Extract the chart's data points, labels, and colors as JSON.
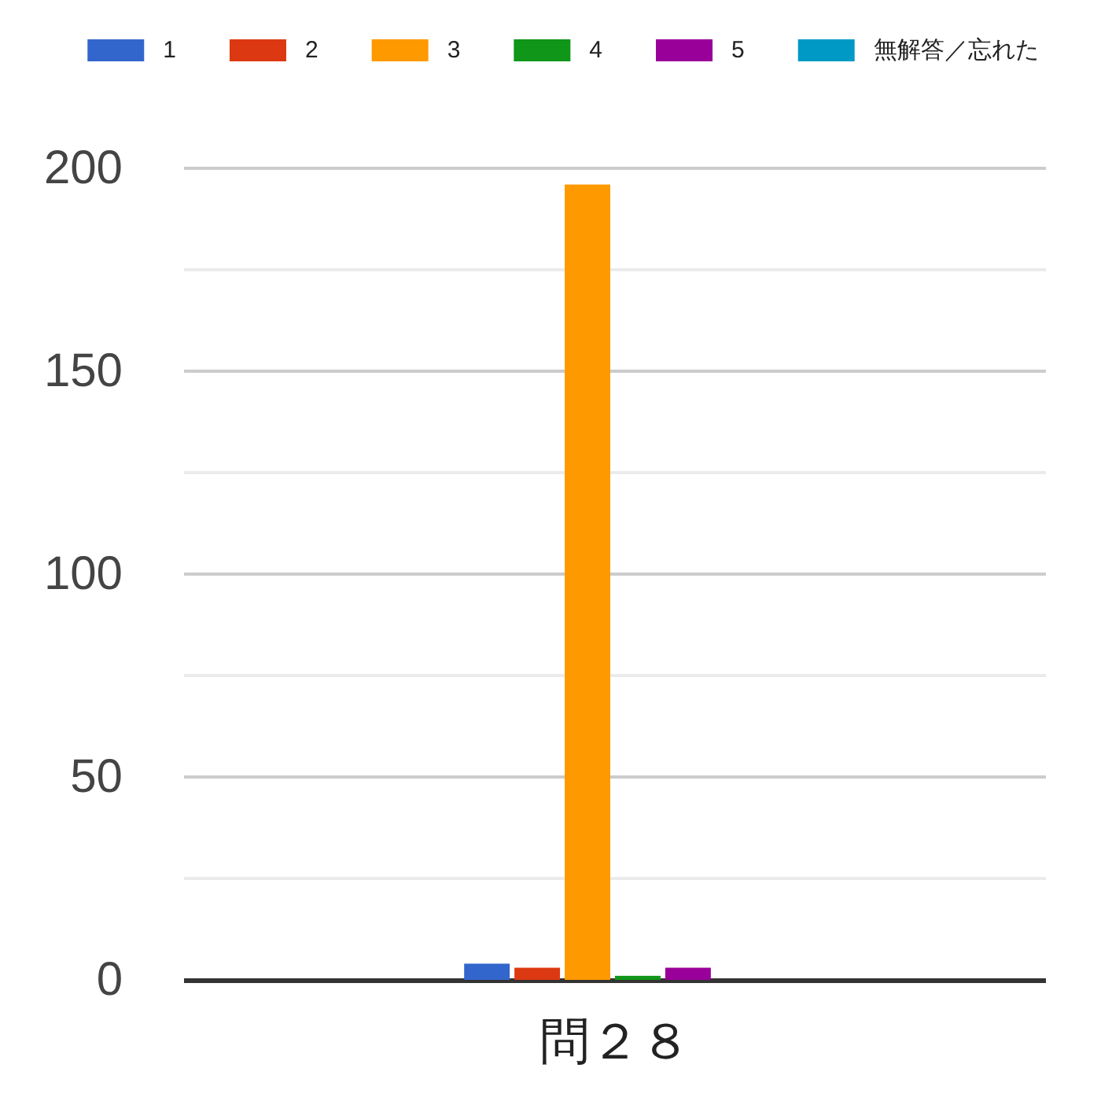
{
  "chart_data": {
    "type": "bar",
    "categories": [
      "問２８"
    ],
    "series": [
      {
        "name": "1",
        "color": "#3366cc",
        "values": [
          4
        ]
      },
      {
        "name": "2",
        "color": "#dc3912",
        "values": [
          3
        ]
      },
      {
        "name": "3",
        "color": "#ff9900",
        "values": [
          196
        ]
      },
      {
        "name": "4",
        "color": "#109618",
        "values": [
          1
        ]
      },
      {
        "name": "5",
        "color": "#990099",
        "values": [
          3
        ]
      },
      {
        "name": "無解答／忘れた",
        "color": "#0099c6",
        "values": [
          0
        ]
      }
    ],
    "ylim": [
      0,
      200
    ],
    "yticks": [
      0,
      {
        "value": 25,
        "label": null
      },
      50,
      {
        "value": 75,
        "label": null
      },
      100,
      {
        "value": 125,
        "label": null
      },
      150,
      {
        "value": 175,
        "label": null
      },
      200
    ],
    "grid": "y",
    "legend": "top"
  }
}
